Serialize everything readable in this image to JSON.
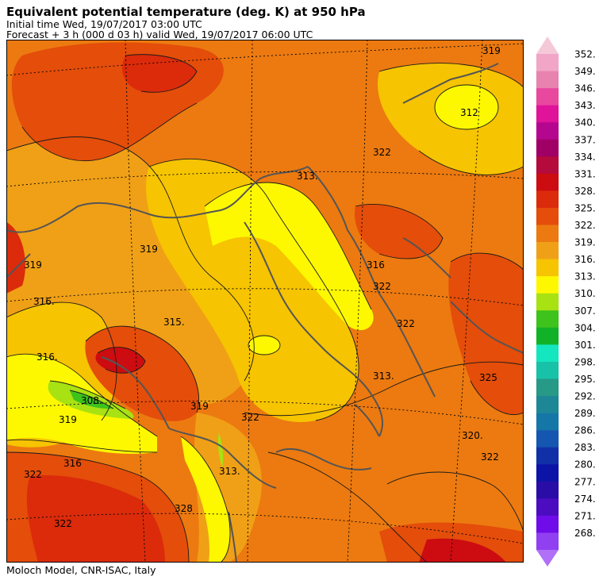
{
  "header": {
    "title": "Equivalent potential temperature (deg. K) at 950 hPa",
    "initial_time": "Initial time  Wed, 19/07/2017  03:00 UTC",
    "forecast": "Forecast  +   3 h  (000 d 03 h)  valid Wed, 19/07/2017 06:00 UTC"
  },
  "footer": {
    "credit": "Moloch Model, CNR-ISAC, Italy"
  },
  "colorbar": {
    "levels": [
      "352.",
      "349.",
      "346.",
      "343.",
      "340.",
      "337.",
      "334.",
      "331.",
      "328.",
      "325.",
      "322.",
      "319.",
      "316.",
      "313.",
      "310.",
      "307.",
      "304.",
      "301.",
      "298.",
      "295.",
      "292.",
      "289.",
      "286.",
      "283.",
      "280.",
      "277.",
      "274.",
      "271.",
      "268."
    ],
    "colors": [
      "#f2a6c7",
      "#e883b0",
      "#e8489e",
      "#e0139b",
      "#b5068f",
      "#a00066",
      "#b50a3c",
      "#cc0c10",
      "#db2b0b",
      "#e44d0a",
      "#ec7a10",
      "#f0a016",
      "#f6c400",
      "#fdf800",
      "#a8e212",
      "#3ec21c",
      "#12b228",
      "#14e6c0",
      "#18c2a8",
      "#269987",
      "#1d8796",
      "#1577a8",
      "#1557b0",
      "#1030a8",
      "#0c14a8",
      "#2a0ca6",
      "#4c0cc0",
      "#700cea",
      "#9040f0"
    ],
    "top_arrow_color": "#f5c8d8",
    "bottom_arrow_color": "#b070f8"
  },
  "map": {
    "contour_labels": [
      "319",
      "316.",
      "322",
      "319",
      "316.",
      "312",
      "322",
      "325",
      "319",
      "316",
      "313.",
      "316",
      "315.",
      "308.",
      "319",
      "322",
      "320.",
      "322",
      "313.",
      "322",
      "328",
      "322",
      "319",
      "313.",
      "322"
    ]
  }
}
